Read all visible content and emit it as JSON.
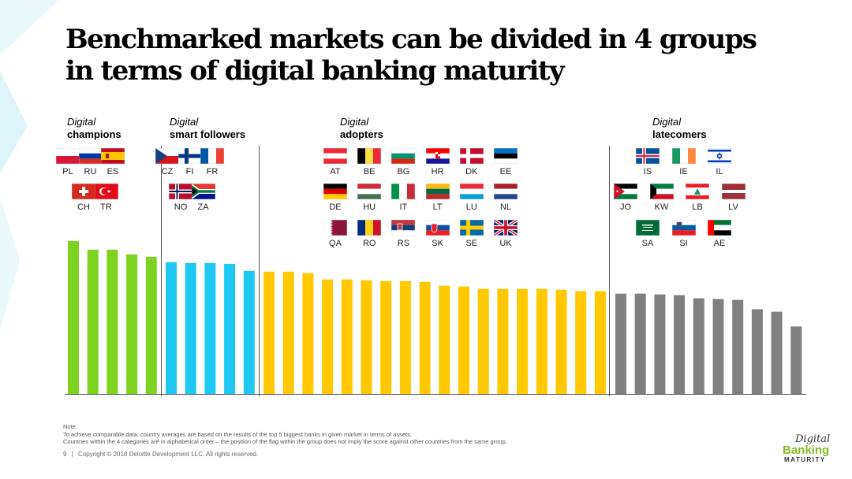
{
  "title": {
    "line1": "Benchmarked markets can be divided in 4 groups",
    "line2": "in terms of digital banking maturity"
  },
  "groups": [
    {
      "line1": "Digital",
      "line2": "champions",
      "color": "#7ed321"
    },
    {
      "line1": "Digital",
      "line2": "smart followers",
      "color": "#1ec8f0"
    },
    {
      "line1": "Digital",
      "line2": "adopters",
      "color": "#ffc800"
    },
    {
      "line1": "Digital",
      "line2": "latecomers",
      "color": "#808080"
    }
  ],
  "flags": {
    "champions": [
      "PL",
      "RU",
      "ES",
      "CH",
      "TR"
    ],
    "smart_followers": [
      "CZ",
      "FI",
      "FR",
      "NO",
      "ZA"
    ],
    "adopters": [
      "AT",
      "BE",
      "BG",
      "HR",
      "DK",
      "EE",
      "DE",
      "HU",
      "IT",
      "LT",
      "LU",
      "NL",
      "QA",
      "RO",
      "RS",
      "SK",
      "SE",
      "UK"
    ],
    "latecomers": [
      "IS",
      "IE",
      "IL",
      "JO",
      "KW",
      "LB",
      "LV",
      "SA",
      "SI",
      "AE"
    ]
  },
  "chart_data": {
    "type": "bar",
    "title": "",
    "xlabel": "",
    "ylabel": "",
    "ylim": [
      0,
      100
    ],
    "grid": false,
    "axis_labels_shown": false,
    "series": [
      {
        "name": "Digital champions",
        "color": "#7ed321",
        "values": [
          100,
          94.4,
          94.4,
          91.3,
          89.7
        ]
      },
      {
        "name": "Digital smart followers",
        "color": "#1ec8f0",
        "values": [
          86.2,
          85.6,
          85.6,
          85.1,
          80.5
        ]
      },
      {
        "name": "Digital adopters",
        "color": "#ffc800",
        "values": [
          80.0,
          80.0,
          79.0,
          74.9,
          74.9,
          74.4,
          73.8,
          73.8,
          73.3,
          70.8,
          70.3,
          68.7,
          68.7,
          68.7,
          68.7,
          68.2,
          67.2,
          67.2
        ]
      },
      {
        "name": "Digital latecomers",
        "color": "#808080",
        "values": [
          65.6,
          65.6,
          65.1,
          64.6,
          62.6,
          62.1,
          61.5,
          55.4,
          53.8,
          44.1
        ]
      }
    ]
  },
  "note": {
    "heading": "Note:",
    "line1": "To achieve comparable data, country averages are based on the results of the top 5 biggest banks in given market in terms of assets.",
    "line2": "Countries within the 4 categories are in alphabetical order – the position of the flag within the group does not imply the score against other countries from the same group."
  },
  "footer": {
    "page": "9",
    "separator": "|",
    "copyright": "Copyright © 2018 Deloitte Development LLC. All rights reserved."
  },
  "logo": {
    "line1": "Digital",
    "line2": "Banking",
    "line3": "MATURITY"
  }
}
